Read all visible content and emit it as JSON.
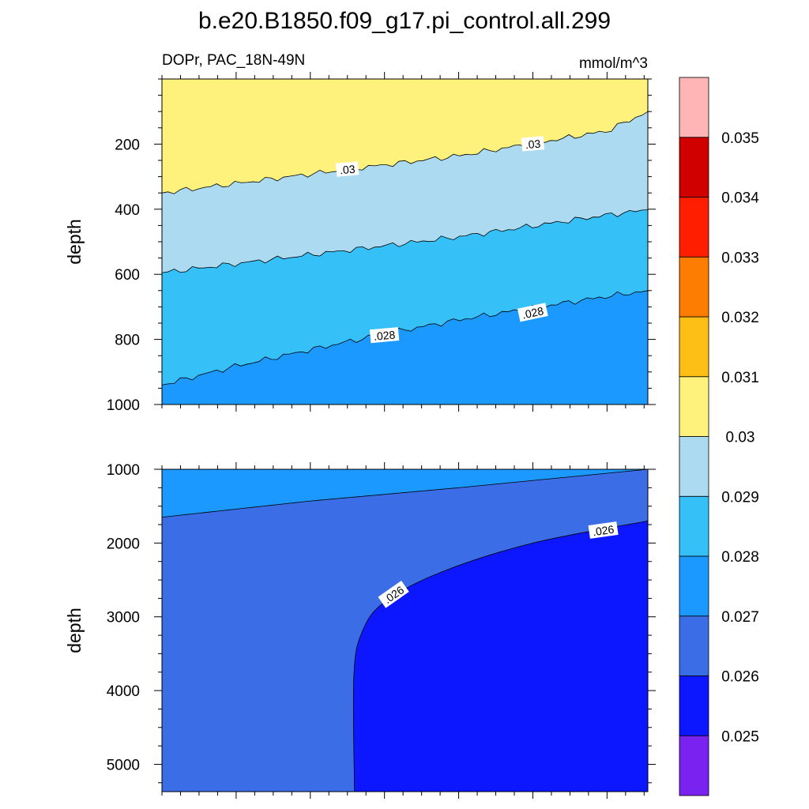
{
  "figure": {
    "title": "b.e20.B1850.f09_g17.pi_control.all.299",
    "subtitle_left": "DOPr, PAC_18N-49N",
    "subtitle_right": "mmol/m^3"
  },
  "chart_data": [
    {
      "type": "contour",
      "panel": "upper",
      "xlabel": "",
      "ylabel": "depth",
      "xlim": [
        0,
        262
      ],
      "ylim": [
        0,
        1000
      ],
      "y_inverted": true,
      "x_ticks": [
        40,
        80,
        120,
        160,
        200,
        240
      ],
      "y_ticks": [
        200,
        400,
        600,
        800,
        1000
      ],
      "contours": [
        {
          "level": 0.03,
          "x": [
            0,
            80,
            160,
            240,
            262
          ],
          "depth": [
            350,
            292,
            236,
            160,
            100
          ]
        },
        {
          "level": 0.029,
          "x": [
            0,
            80,
            160,
            240,
            262
          ],
          "depth": [
            595,
            540,
            485,
            418,
            402
          ]
        },
        {
          "level": 0.028,
          "x": [
            0,
            40,
            80,
            120,
            160,
            200,
            240,
            262
          ],
          "depth": [
            940,
            882,
            832,
            783,
            740,
            703,
            668,
            650
          ]
        }
      ],
      "contour_labels": [
        {
          "text": ".03",
          "x": 100,
          "depth": 278
        },
        {
          "text": ".03",
          "x": 200,
          "depth": 200
        },
        {
          "text": ".028",
          "x": 120,
          "depth": 788
        },
        {
          "text": ".028",
          "x": 200,
          "depth": 718
        }
      ]
    },
    {
      "type": "contour",
      "panel": "lower",
      "xlabel": "",
      "ylabel": "depth",
      "xlim": [
        0,
        262
      ],
      "ylim": [
        1000,
        5370
      ],
      "y_inverted": true,
      "x_ticks": [
        40,
        80,
        120,
        160,
        200,
        240
      ],
      "y_ticks": [
        1000,
        2000,
        3000,
        4000,
        5000
      ],
      "contours": [
        {
          "level": 0.027,
          "x": [
            0,
            80,
            160,
            262
          ],
          "depth": [
            1650,
            1430,
            1250,
            1000
          ]
        },
        {
          "level": 0.026,
          "x": [
            104,
            104,
            108,
            120,
            150,
            200,
            262
          ],
          "depth": [
            5370,
            3800,
            3200,
            2800,
            2400,
            2000,
            1700
          ]
        }
      ],
      "contour_labels": [
        {
          "text": ".026",
          "x": 125,
          "depth": 2700
        },
        {
          "text": ".026",
          "x": 238,
          "depth": 1830
        }
      ]
    }
  ],
  "colorbar": {
    "levels": [
      "0.025",
      "0.026",
      "0.027",
      "0.028",
      "0.029",
      "0.03",
      "0.031",
      "0.032",
      "0.033",
      "0.034",
      "0.035"
    ],
    "colors": [
      "#7a22ef",
      "#0d17ff",
      "#3b6ee6",
      "#1b99ff",
      "#36c0f8",
      "#acdaf0",
      "#fef17c",
      "#fdbe15",
      "#fd7c02",
      "#ff1f00",
      "#d10000",
      "#ffb5b5"
    ]
  }
}
